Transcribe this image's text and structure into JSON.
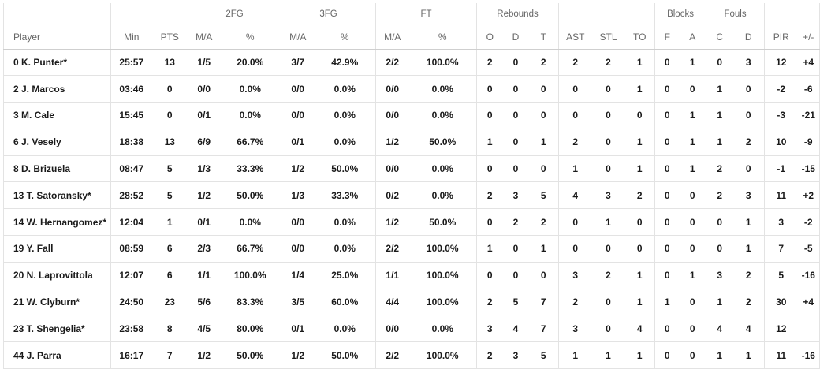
{
  "groups": {
    "fg2": "2FG",
    "fg3": "3FG",
    "ft": "FT",
    "rebounds": "Rebounds",
    "blocks": "Blocks",
    "fouls": "Fouls"
  },
  "columns": {
    "player": "Player",
    "min": "Min",
    "pts": "PTS",
    "fg2_ma": "M/A",
    "fg2_pct": "%",
    "fg3_ma": "M/A",
    "fg3_pct": "%",
    "ft_ma": "M/A",
    "ft_pct": "%",
    "reb_o": "O",
    "reb_d": "D",
    "reb_t": "T",
    "ast": "AST",
    "stl": "STL",
    "to": "TO",
    "blk_f": "F",
    "blk_a": "A",
    "foul_c": "C",
    "foul_d": "D",
    "pir": "PIR",
    "pm": "+/-"
  },
  "rows": [
    {
      "player": "0 K. Punter*",
      "min": "25:57",
      "pts": "13",
      "fg2_ma": "1/5",
      "fg2_pct": "20.0%",
      "fg3_ma": "3/7",
      "fg3_pct": "42.9%",
      "ft_ma": "2/2",
      "ft_pct": "100.0%",
      "reb_o": "2",
      "reb_d": "0",
      "reb_t": "2",
      "ast": "2",
      "stl": "2",
      "to": "1",
      "blk_f": "0",
      "blk_a": "1",
      "foul_c": "0",
      "foul_d": "3",
      "pir": "12",
      "pm": "+4"
    },
    {
      "player": "2 J. Marcos",
      "min": "03:46",
      "pts": "0",
      "fg2_ma": "0/0",
      "fg2_pct": "0.0%",
      "fg3_ma": "0/0",
      "fg3_pct": "0.0%",
      "ft_ma": "0/0",
      "ft_pct": "0.0%",
      "reb_o": "0",
      "reb_d": "0",
      "reb_t": "0",
      "ast": "0",
      "stl": "0",
      "to": "1",
      "blk_f": "0",
      "blk_a": "0",
      "foul_c": "1",
      "foul_d": "0",
      "pir": "-2",
      "pm": "-6"
    },
    {
      "player": "3 M. Cale",
      "min": "15:45",
      "pts": "0",
      "fg2_ma": "0/1",
      "fg2_pct": "0.0%",
      "fg3_ma": "0/0",
      "fg3_pct": "0.0%",
      "ft_ma": "0/0",
      "ft_pct": "0.0%",
      "reb_o": "0",
      "reb_d": "0",
      "reb_t": "0",
      "ast": "0",
      "stl": "0",
      "to": "0",
      "blk_f": "0",
      "blk_a": "1",
      "foul_c": "1",
      "foul_d": "0",
      "pir": "-3",
      "pm": "-21"
    },
    {
      "player": "6 J. Vesely",
      "min": "18:38",
      "pts": "13",
      "fg2_ma": "6/9",
      "fg2_pct": "66.7%",
      "fg3_ma": "0/1",
      "fg3_pct": "0.0%",
      "ft_ma": "1/2",
      "ft_pct": "50.0%",
      "reb_o": "1",
      "reb_d": "0",
      "reb_t": "1",
      "ast": "2",
      "stl": "0",
      "to": "1",
      "blk_f": "0",
      "blk_a": "1",
      "foul_c": "1",
      "foul_d": "2",
      "pir": "10",
      "pm": "-9"
    },
    {
      "player": "8 D. Brizuela",
      "min": "08:47",
      "pts": "5",
      "fg2_ma": "1/3",
      "fg2_pct": "33.3%",
      "fg3_ma": "1/2",
      "fg3_pct": "50.0%",
      "ft_ma": "0/0",
      "ft_pct": "0.0%",
      "reb_o": "0",
      "reb_d": "0",
      "reb_t": "0",
      "ast": "1",
      "stl": "0",
      "to": "1",
      "blk_f": "0",
      "blk_a": "1",
      "foul_c": "2",
      "foul_d": "0",
      "pir": "-1",
      "pm": "-15"
    },
    {
      "player": "13 T. Satoransky*",
      "min": "28:52",
      "pts": "5",
      "fg2_ma": "1/2",
      "fg2_pct": "50.0%",
      "fg3_ma": "1/3",
      "fg3_pct": "33.3%",
      "ft_ma": "0/2",
      "ft_pct": "0.0%",
      "reb_o": "2",
      "reb_d": "3",
      "reb_t": "5",
      "ast": "4",
      "stl": "3",
      "to": "2",
      "blk_f": "0",
      "blk_a": "0",
      "foul_c": "2",
      "foul_d": "3",
      "pir": "11",
      "pm": "+2"
    },
    {
      "player": "14 W. Hernangomez*",
      "min": "12:04",
      "pts": "1",
      "fg2_ma": "0/1",
      "fg2_pct": "0.0%",
      "fg3_ma": "0/0",
      "fg3_pct": "0.0%",
      "ft_ma": "1/2",
      "ft_pct": "50.0%",
      "reb_o": "0",
      "reb_d": "2",
      "reb_t": "2",
      "ast": "0",
      "stl": "1",
      "to": "0",
      "blk_f": "0",
      "blk_a": "0",
      "foul_c": "0",
      "foul_d": "1",
      "pir": "3",
      "pm": "-2"
    },
    {
      "player": "19 Y. Fall",
      "min": "08:59",
      "pts": "6",
      "fg2_ma": "2/3",
      "fg2_pct": "66.7%",
      "fg3_ma": "0/0",
      "fg3_pct": "0.0%",
      "ft_ma": "2/2",
      "ft_pct": "100.0%",
      "reb_o": "1",
      "reb_d": "0",
      "reb_t": "1",
      "ast": "0",
      "stl": "0",
      "to": "0",
      "blk_f": "0",
      "blk_a": "0",
      "foul_c": "0",
      "foul_d": "1",
      "pir": "7",
      "pm": "-5"
    },
    {
      "player": "20 N. Laprovittola",
      "min": "12:07",
      "pts": "6",
      "fg2_ma": "1/1",
      "fg2_pct": "100.0%",
      "fg3_ma": "1/4",
      "fg3_pct": "25.0%",
      "ft_ma": "1/1",
      "ft_pct": "100.0%",
      "reb_o": "0",
      "reb_d": "0",
      "reb_t": "0",
      "ast": "3",
      "stl": "2",
      "to": "1",
      "blk_f": "0",
      "blk_a": "1",
      "foul_c": "3",
      "foul_d": "2",
      "pir": "5",
      "pm": "-16"
    },
    {
      "player": "21 W. Clyburn*",
      "min": "24:50",
      "pts": "23",
      "fg2_ma": "5/6",
      "fg2_pct": "83.3%",
      "fg3_ma": "3/5",
      "fg3_pct": "60.0%",
      "ft_ma": "4/4",
      "ft_pct": "100.0%",
      "reb_o": "2",
      "reb_d": "5",
      "reb_t": "7",
      "ast": "2",
      "stl": "0",
      "to": "1",
      "blk_f": "1",
      "blk_a": "0",
      "foul_c": "1",
      "foul_d": "2",
      "pir": "30",
      "pm": "+4"
    },
    {
      "player": "23 T. Shengelia*",
      "min": "23:58",
      "pts": "8",
      "fg2_ma": "4/5",
      "fg2_pct": "80.0%",
      "fg3_ma": "0/1",
      "fg3_pct": "0.0%",
      "ft_ma": "0/0",
      "ft_pct": "0.0%",
      "reb_o": "3",
      "reb_d": "4",
      "reb_t": "7",
      "ast": "3",
      "stl": "0",
      "to": "4",
      "blk_f": "0",
      "blk_a": "0",
      "foul_c": "4",
      "foul_d": "4",
      "pir": "12",
      "pm": ""
    },
    {
      "player": "44 J. Parra",
      "min": "16:17",
      "pts": "7",
      "fg2_ma": "1/2",
      "fg2_pct": "50.0%",
      "fg3_ma": "1/2",
      "fg3_pct": "50.0%",
      "ft_ma": "2/2",
      "ft_pct": "100.0%",
      "reb_o": "2",
      "reb_d": "3",
      "reb_t": "5",
      "ast": "1",
      "stl": "1",
      "to": "1",
      "blk_f": "0",
      "blk_a": "0",
      "foul_c": "1",
      "foul_d": "1",
      "pir": "11",
      "pm": "-16"
    }
  ]
}
